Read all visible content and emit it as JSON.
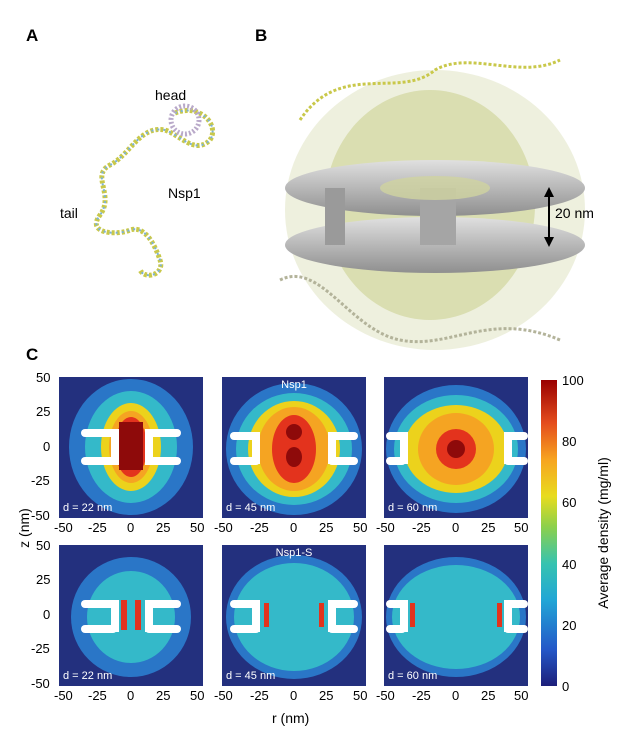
{
  "panel_letters": {
    "a": "A",
    "b": "B",
    "c": "C"
  },
  "panel_a": {
    "head": "head",
    "tail": "tail",
    "protein": "Nsp1"
  },
  "panel_b": {
    "height": "20 nm"
  },
  "panel_c": {
    "top_title": "Nsp1",
    "bottom_title": "Nsp1-S",
    "d_labels": [
      "d = 22 nm",
      "d = 45 nm",
      "d = 60 nm"
    ],
    "z_ticks": [
      "50",
      "25",
      "0",
      "-25",
      "-50"
    ],
    "r_ticks": [
      "-50",
      "-25",
      "0",
      "25",
      "50"
    ],
    "z_label": "z (nm)",
    "r_label": "r (nm)",
    "colorbar": {
      "label": "Average density (mg/ml)",
      "ticks": [
        "100",
        "80",
        "60",
        "40",
        "20",
        "0"
      ]
    }
  },
  "colors": {
    "background": "#23307e",
    "dark_red": "#8e0a0a",
    "red": "#e3331d",
    "orange": "#f5a422",
    "yellow": "#ecd21c",
    "cyan": "#34b9c9",
    "blue": "#2a76c7",
    "gray_pore": "#b9b9b9"
  }
}
